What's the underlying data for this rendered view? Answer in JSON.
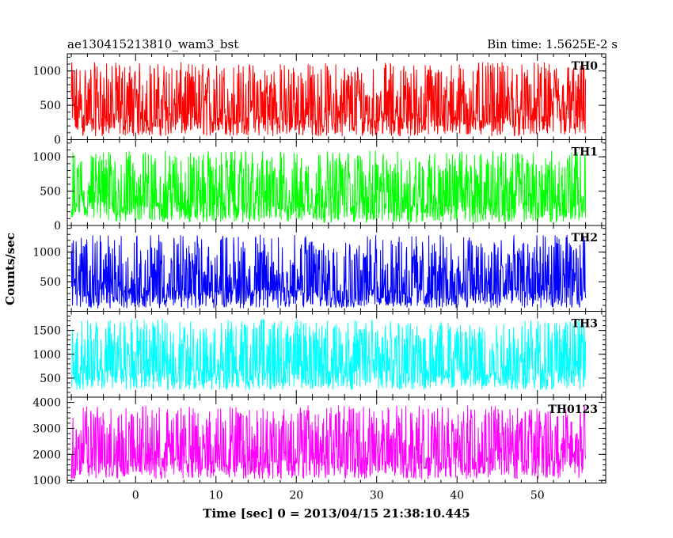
{
  "header": {
    "title": "ae130415213810_wam3_bst",
    "bin_time": "Bin time: 1.5625E-2 s"
  },
  "chart_data": {
    "type": "line",
    "title": "ae130415213810_wam3_bst",
    "xlabel": "Time [sec] 0 = 2013/04/15 21:38:10.445",
    "ylabel": "Counts/sec",
    "xlim": [
      -8.5,
      58.5
    ],
    "data_xrange": [
      -8,
      56
    ],
    "x_ticks": [
      0,
      10,
      20,
      30,
      40,
      50
    ],
    "grid": false,
    "panels": [
      {
        "name": "TH0",
        "color": "#ff0000",
        "ylim": [
          0,
          1250
        ],
        "y_ticks": [
          0,
          500,
          1000
        ],
        "low": 50,
        "mean": 550,
        "high": 1250
      },
      {
        "name": "TH1",
        "color": "#00ff00",
        "ylim": [
          0,
          1250
        ],
        "y_ticks": [
          0,
          500,
          1000
        ],
        "low": 40,
        "mean": 560,
        "high": 1200
      },
      {
        "name": "TH2",
        "color": "#0000ff",
        "ylim": [
          0,
          1450
        ],
        "y_ticks": [
          500,
          1000
        ],
        "low": 50,
        "mean": 580,
        "high": 1450
      },
      {
        "name": "TH3",
        "color": "#00ffff",
        "ylim": [
          100,
          1900
        ],
        "y_ticks": [
          500,
          1000,
          1500
        ],
        "low": 250,
        "mean": 1000,
        "high": 1900
      },
      {
        "name": "TH0123",
        "color": "#ff00ff",
        "ylim": [
          900,
          4200
        ],
        "y_ticks": [
          1000,
          2000,
          3000,
          4000
        ],
        "low": 1050,
        "mean": 2450,
        "high": 4200
      }
    ]
  }
}
